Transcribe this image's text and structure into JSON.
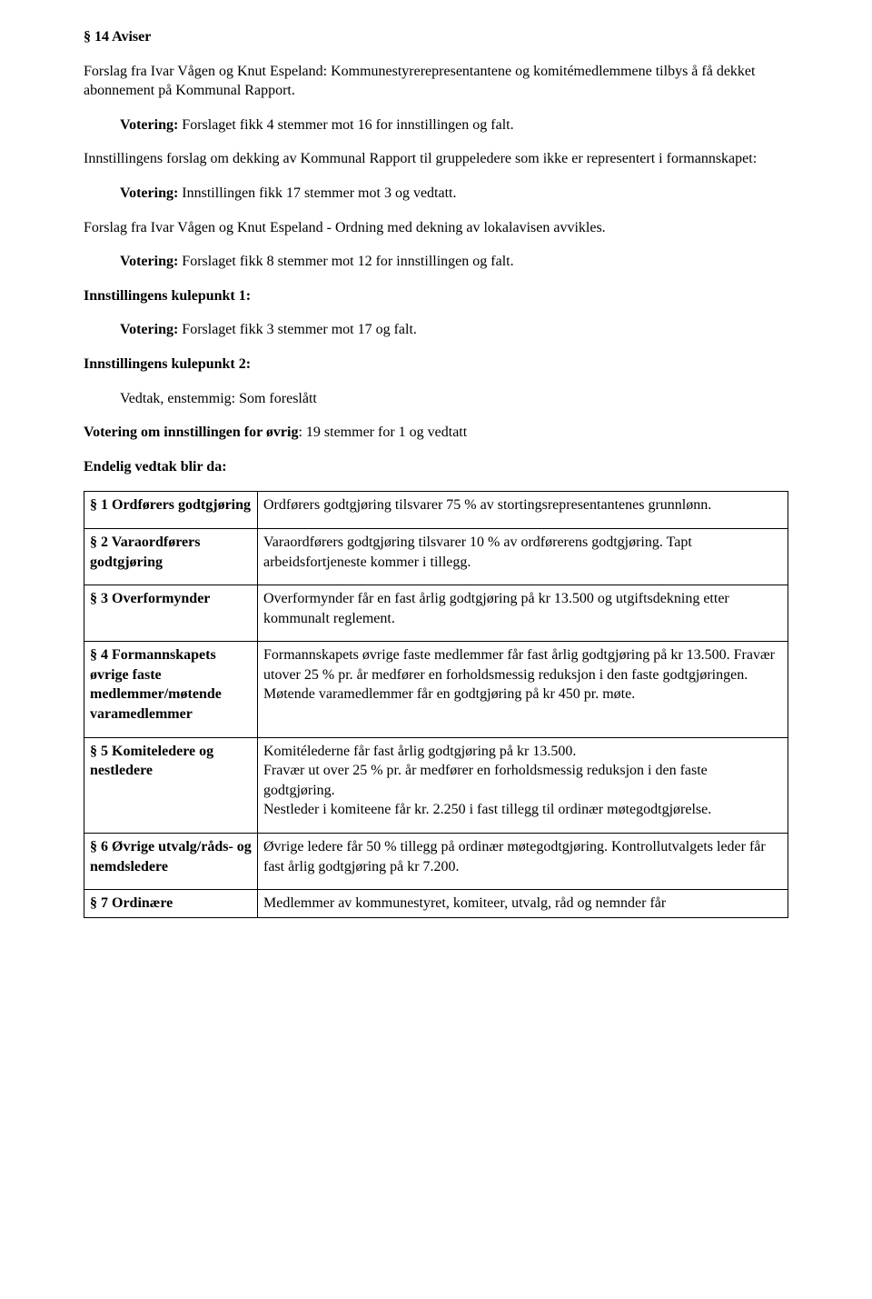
{
  "heading": "§ 14 Aviser",
  "p1": "Forslag fra Ivar Vågen og Knut Espeland: Kommunestyrerepresentantene og komitémedlemmene tilbys å få dekket abonnement på Kommunal Rapport.",
  "v1_label": "Votering:",
  "v1_rest": " Forslaget fikk 4 stemmer mot 16 for innstillingen og falt.",
  "p2": "Innstillingens forslag om dekking av Kommunal Rapport til gruppeledere som ikke er representert i formannskapet:",
  "v2_label": "Votering:",
  "v2_rest": " Innstillingen fikk 17 stemmer mot 3 og vedtatt.",
  "p3": "Forslag fra Ivar Vågen og Knut Espeland - Ordning med dekning av lokalavisen avvikles.",
  "v3_label": "Votering:",
  "v3_rest": "  Forslaget fikk 8 stemmer mot 12 for innstillingen og falt.",
  "k1": "Innstillingens kulepunkt 1:",
  "v4_label": "Votering:",
  "v4_rest": " Forslaget fikk 3 stemmer mot 17 og falt.",
  "k2": "Innstillingens kulepunkt 2:",
  "v5": "Vedtak, enstemmig: Som foreslått",
  "vot_other_label": "Votering om innstillingen for øvrig",
  "vot_other_rest": ": 19 stemmer for 1 og vedtatt",
  "final": "Endelig vedtak blir da:",
  "table": {
    "rows": [
      {
        "left": "§ 1 Ordførers godtgjøring",
        "right": "Ordførers godtgjøring tilsvarer 75 % av stortingsrepresentantenes grunnlønn."
      },
      {
        "left": "§ 2 Varaordførers godtgjøring",
        "right": "Varaordførers godtgjøring tilsvarer 10 % av ordførerens godtgjøring. Tapt arbeidsfortjeneste kommer i tillegg."
      },
      {
        "left": "§ 3 Overformynder",
        "right": "Overformynder får en fast årlig godtgjøring på kr 13.500 og utgiftsdekning etter kommunalt reglement."
      },
      {
        "left": "§ 4 Formannskapets øvrige faste medlemmer/møtende varamedlemmer",
        "right": "Formannskapets øvrige faste medlemmer får fast årlig godtgjøring på kr 13.500. Fravær utover 25 % pr. år medfører en forholdsmessig reduksjon i den faste godtgjøringen.\nMøtende varamedlemmer får en godtgjøring på kr 450 pr. møte."
      },
      {
        "left": "§ 5 Komiteledere og nestledere",
        "right": "Komitélederne får fast årlig godtgjøring på kr 13.500.\nFravær ut over 25 % pr. år medfører en forholdsmessig reduksjon i den faste godtgjøring.\nNestleder i komiteene får kr. 2.250 i fast tillegg til ordinær møtegodtgjørelse."
      },
      {
        "left": "§ 6 Øvrige utvalg/råds- og nemdsledere",
        "right": "Øvrige ledere får 50 % tillegg på ordinær møtegodtgjøring. Kontrollutvalgets leder får fast årlig godtgjøring på kr 7.200."
      },
      {
        "left": "§ 7 Ordinære",
        "right": "Medlemmer av kommunestyret, komiteer, utvalg, råd og nemnder får"
      }
    ]
  }
}
